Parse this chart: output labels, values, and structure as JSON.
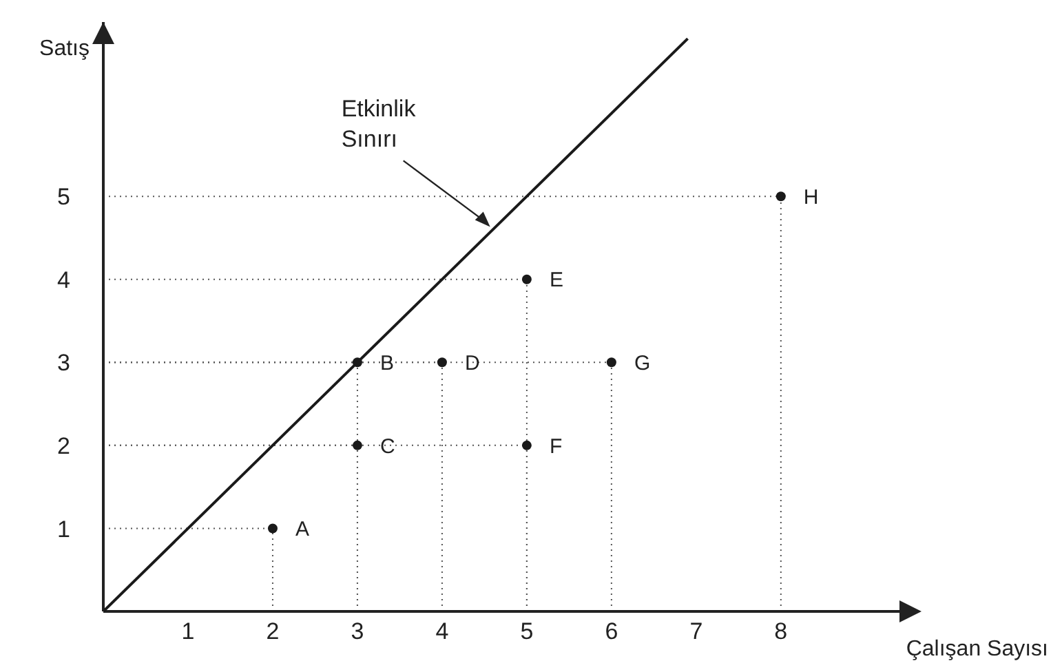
{
  "chart_data": {
    "type": "scatter",
    "xlabel": "Çalışan Sayısı",
    "ylabel": "Satış",
    "xlim": [
      0,
      9.4
    ],
    "ylim": [
      0,
      7.1
    ],
    "xticks": [
      1,
      2,
      3,
      4,
      5,
      6,
      7,
      8
    ],
    "yticks": [
      1,
      2,
      3,
      4,
      5
    ],
    "grid": true,
    "legend": false,
    "marker": "circle",
    "annotations": [
      {
        "text": "Etkinlik\nSınırı",
        "x": 4.6,
        "y": 4.6
      }
    ],
    "series": [
      {
        "type": "line",
        "color": "#1a1a1a",
        "x": [
          0,
          6.9
        ],
        "values": [
          0,
          6.9
        ],
        "marker": "none"
      },
      {
        "name": "A",
        "color": "#1a1a1a",
        "x": [
          2
        ],
        "values": [
          1
        ]
      },
      {
        "name": "B",
        "color": "#1a1a1a",
        "x": [
          3
        ],
        "values": [
          3
        ]
      },
      {
        "name": "C",
        "color": "#1a1a1a",
        "x": [
          3
        ],
        "values": [
          2
        ]
      },
      {
        "name": "D",
        "color": "#1a1a1a",
        "x": [
          4
        ],
        "values": [
          3
        ]
      },
      {
        "name": "E",
        "color": "#1a1a1a",
        "x": [
          5
        ],
        "values": [
          4
        ]
      },
      {
        "name": "F",
        "color": "#1a1a1a",
        "x": [
          5
        ],
        "values": [
          2
        ]
      },
      {
        "name": "G",
        "color": "#1a1a1a",
        "x": [
          6
        ],
        "values": [
          3
        ]
      },
      {
        "name": "H",
        "color": "#1a1a1a",
        "x": [
          8
        ],
        "values": [
          5
        ]
      }
    ]
  }
}
